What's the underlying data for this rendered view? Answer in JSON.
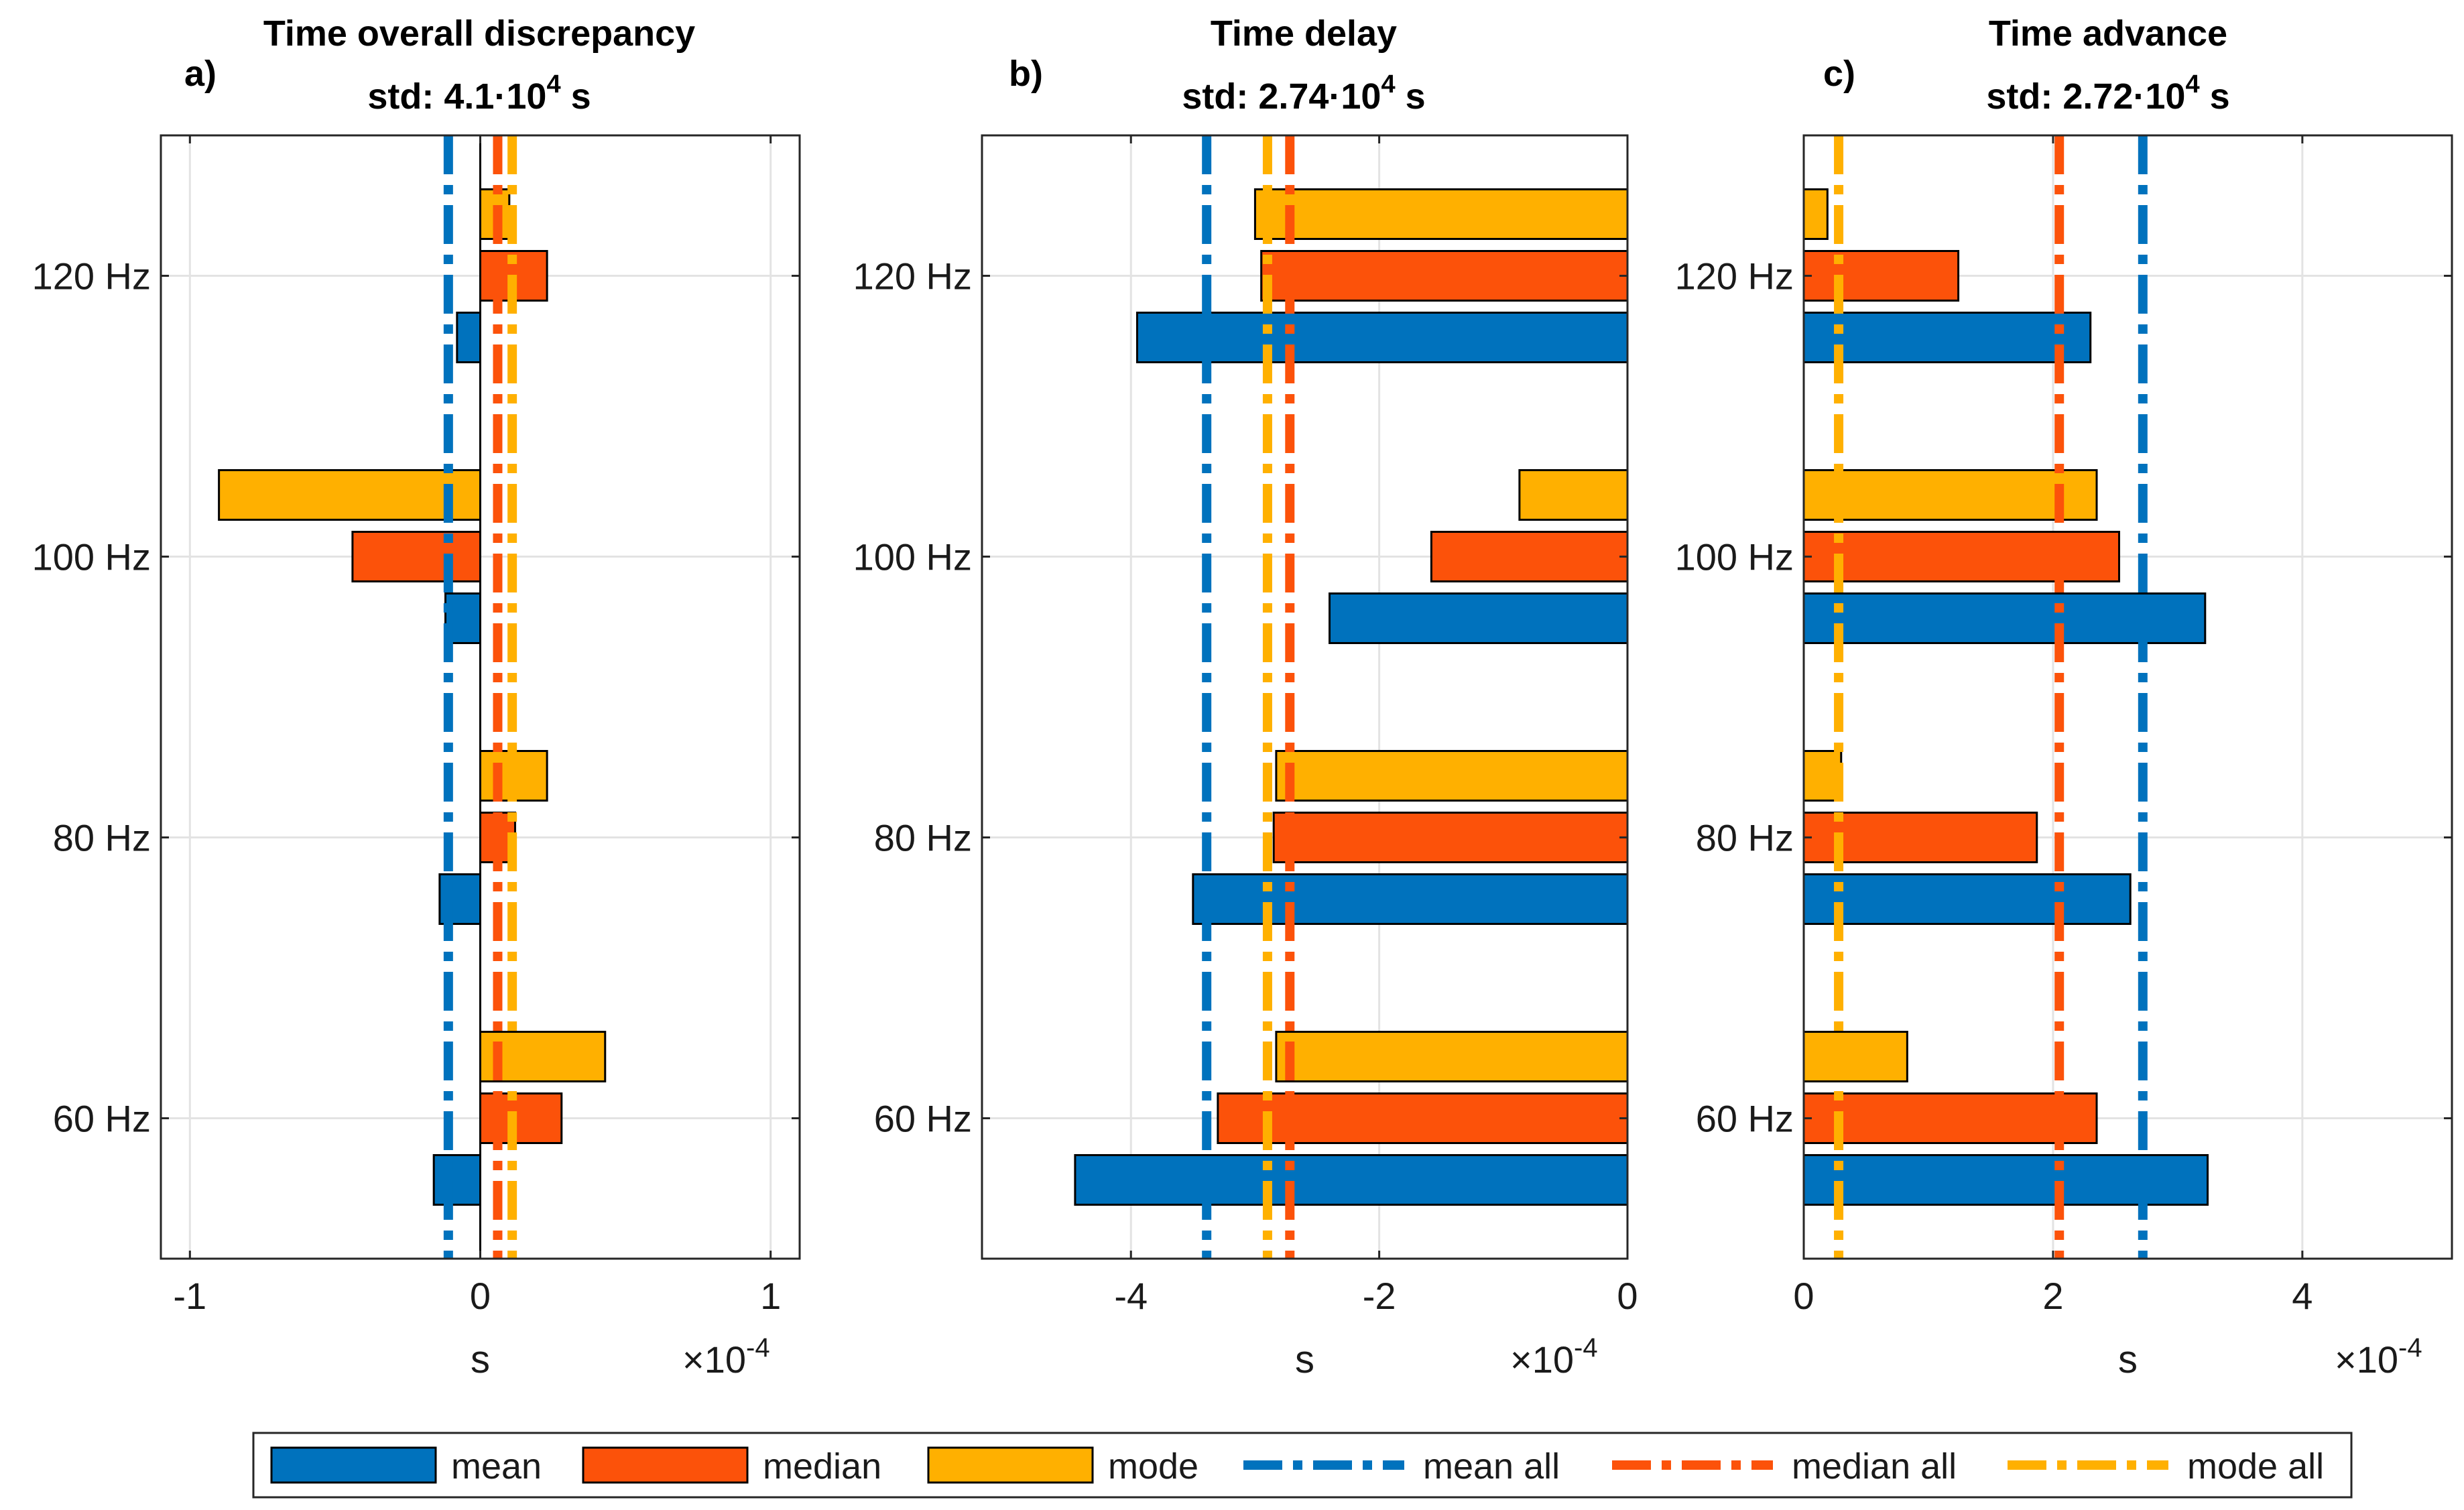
{
  "colors": {
    "mean": "#0072bd",
    "median": "#fc520a",
    "mode": "#ffb000",
    "grid": "#e3e3e3",
    "axis": "#262626"
  },
  "series_names": [
    "mean",
    "median",
    "mode"
  ],
  "chart_data": [
    {
      "type": "bar",
      "orientation": "horizontal",
      "panel_label": "a)",
      "title": "Time overall discrepancy",
      "subtitle_prefix": "std: ",
      "subtitle_value": "4.1·10",
      "subtitle_exp": "4",
      "subtitle_unit": " s",
      "xlabel": "s",
      "x_multiplier_base": "×10",
      "x_multiplier_exp": "-4",
      "xlim": [
        -1.1,
        1.1
      ],
      "xticks": [
        -1,
        0,
        1
      ],
      "xtick_labels": [
        "-1",
        "0",
        "1"
      ],
      "ylim": [
        50,
        130
      ],
      "yticks": [
        60,
        80,
        100,
        120
      ],
      "ytick_labels": [
        "60 Hz",
        "80 Hz",
        "100 Hz",
        "120 Hz"
      ],
      "categories": [
        60,
        80,
        100,
        120
      ],
      "series": [
        {
          "name": "mean",
          "values": [
            -0.16,
            -0.14,
            -0.12,
            -0.08
          ]
        },
        {
          "name": "median",
          "values": [
            0.28,
            0.12,
            -0.44,
            0.23
          ]
        },
        {
          "name": "mode",
          "values": [
            0.43,
            0.23,
            -0.9,
            0.1
          ]
        }
      ],
      "reference_lines": [
        {
          "name": "mean all",
          "value": -0.11
        },
        {
          "name": "median all",
          "value": 0.06
        },
        {
          "name": "mode all",
          "value": 0.11
        }
      ],
      "zero_line": true,
      "grid": true
    },
    {
      "type": "bar",
      "orientation": "horizontal",
      "panel_label": "b)",
      "title": "Time delay",
      "subtitle_prefix": "std: ",
      "subtitle_value": "2.74·10",
      "subtitle_exp": "4",
      "subtitle_unit": " s",
      "xlabel": "s",
      "x_multiplier_base": "×10",
      "x_multiplier_exp": "-4",
      "xlim": [
        -5.2,
        0
      ],
      "xticks": [
        -4,
        -2,
        0
      ],
      "xtick_labels": [
        "-4",
        "-2",
        "0"
      ],
      "ylim": [
        50,
        130
      ],
      "yticks": [
        60,
        80,
        100,
        120
      ],
      "ytick_labels": [
        "60 Hz",
        "80 Hz",
        "100 Hz",
        "120 Hz"
      ],
      "categories": [
        60,
        80,
        100,
        120
      ],
      "series": [
        {
          "name": "mean",
          "values": [
            -4.45,
            -3.5,
            -2.4,
            -3.95
          ]
        },
        {
          "name": "median",
          "values": [
            -3.3,
            -2.85,
            -1.58,
            -2.95
          ]
        },
        {
          "name": "mode",
          "values": [
            -2.83,
            -2.83,
            -0.87,
            -3.0
          ]
        }
      ],
      "reference_lines": [
        {
          "name": "mean all",
          "value": -3.39
        },
        {
          "name": "median all",
          "value": -2.72
        },
        {
          "name": "mode all",
          "value": -2.9
        }
      ],
      "zero_line": false,
      "grid": true
    },
    {
      "type": "bar",
      "orientation": "horizontal",
      "panel_label": "c)",
      "title": "Time advance",
      "subtitle_prefix": "std: ",
      "subtitle_value": "2.72·10",
      "subtitle_exp": "4",
      "subtitle_unit": " s",
      "xlabel": "s",
      "x_multiplier_base": "×10",
      "x_multiplier_exp": "-4",
      "xlim": [
        0,
        5.2
      ],
      "xticks": [
        0,
        2,
        4
      ],
      "xtick_labels": [
        "0",
        "2",
        "4"
      ],
      "ylim": [
        50,
        130
      ],
      "yticks": [
        60,
        80,
        100,
        120
      ],
      "ytick_labels": [
        "60 Hz",
        "80 Hz",
        "100 Hz",
        "120 Hz"
      ],
      "categories": [
        60,
        80,
        100,
        120
      ],
      "series": [
        {
          "name": "mean",
          "values": [
            3.24,
            2.62,
            3.22,
            2.3
          ]
        },
        {
          "name": "median",
          "values": [
            2.35,
            1.87,
            2.53,
            1.24
          ]
        },
        {
          "name": "mode",
          "values": [
            0.83,
            0.3,
            2.35,
            0.19
          ]
        }
      ],
      "reference_lines": [
        {
          "name": "mean all",
          "value": 2.72
        },
        {
          "name": "median all",
          "value": 2.05
        },
        {
          "name": "mode all",
          "value": 0.28
        }
      ],
      "zero_line": false,
      "grid": true
    }
  ],
  "legend": {
    "position": "bottom",
    "entries": [
      {
        "kind": "bar",
        "series": "mean",
        "label": "mean"
      },
      {
        "kind": "bar",
        "series": "median",
        "label": "median"
      },
      {
        "kind": "bar",
        "series": "mode",
        "label": "mode"
      },
      {
        "kind": "line",
        "series": "mean",
        "label": "mean all"
      },
      {
        "kind": "line",
        "series": "median",
        "label": "median all"
      },
      {
        "kind": "line",
        "series": "mode",
        "label": "mode all"
      }
    ]
  }
}
